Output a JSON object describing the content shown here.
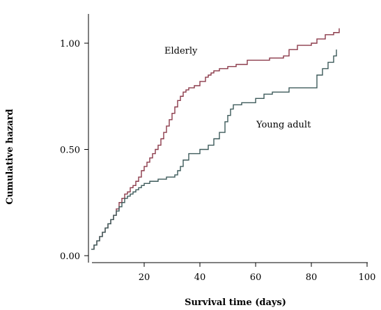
{
  "chart_data": {
    "type": "line",
    "line_style": "step",
    "xlabel": "Survival time (days)",
    "ylabel": "Cumulative hazard",
    "xlim": [
      0,
      100
    ],
    "ylim": [
      0,
      1.1
    ],
    "xticks": [
      20,
      40,
      60,
      80,
      100
    ],
    "yticks": [
      0.0,
      0.5,
      1.0
    ],
    "xtick_labels": [
      "20",
      "40",
      "60",
      "80",
      "100"
    ],
    "ytick_labels": [
      "0.00",
      "0.50",
      "1.00"
    ],
    "grid": false,
    "legend": "none",
    "series": [
      {
        "name": "Elderly",
        "color": "#8b3a4a",
        "x": [
          1,
          2,
          3,
          4,
          5,
          6,
          7,
          8,
          9,
          10,
          11,
          12,
          13,
          14,
          15,
          16,
          17,
          18,
          19,
          20,
          21,
          22,
          23,
          24,
          25,
          26,
          27,
          28,
          29,
          30,
          31,
          32,
          33,
          34,
          35,
          36,
          38,
          40,
          42,
          43,
          44,
          45,
          47,
          50,
          53,
          57,
          65,
          70,
          72,
          75,
          80,
          82,
          85,
          88,
          90
        ],
        "y": [
          0.03,
          0.05,
          0.07,
          0.09,
          0.11,
          0.13,
          0.15,
          0.17,
          0.19,
          0.22,
          0.25,
          0.27,
          0.29,
          0.3,
          0.32,
          0.33,
          0.35,
          0.37,
          0.4,
          0.42,
          0.44,
          0.46,
          0.48,
          0.5,
          0.52,
          0.55,
          0.58,
          0.61,
          0.64,
          0.67,
          0.7,
          0.73,
          0.75,
          0.77,
          0.78,
          0.79,
          0.8,
          0.82,
          0.84,
          0.85,
          0.86,
          0.87,
          0.88,
          0.89,
          0.9,
          0.92,
          0.93,
          0.94,
          0.97,
          0.99,
          1.0,
          1.02,
          1.04,
          1.05,
          1.07
        ]
      },
      {
        "name": "Young adult",
        "color": "#3d5a5a",
        "x": [
          1,
          2,
          3,
          4,
          5,
          6,
          7,
          8,
          9,
          10,
          11,
          12,
          13,
          14,
          15,
          16,
          17,
          18,
          19,
          20,
          22,
          25,
          28,
          31,
          32,
          33,
          34,
          36,
          40,
          43,
          45,
          47,
          49,
          50,
          51,
          52,
          55,
          60,
          63,
          66,
          72,
          82,
          84,
          86,
          88,
          89
        ],
        "y": [
          0.03,
          0.05,
          0.07,
          0.09,
          0.11,
          0.13,
          0.15,
          0.17,
          0.19,
          0.21,
          0.23,
          0.25,
          0.27,
          0.28,
          0.29,
          0.3,
          0.31,
          0.32,
          0.33,
          0.34,
          0.35,
          0.36,
          0.37,
          0.38,
          0.4,
          0.42,
          0.45,
          0.48,
          0.5,
          0.52,
          0.55,
          0.58,
          0.63,
          0.66,
          0.69,
          0.71,
          0.72,
          0.74,
          0.76,
          0.77,
          0.79,
          0.85,
          0.88,
          0.91,
          0.94,
          0.97
        ]
      }
    ],
    "annotations": [
      "Elderly",
      "Young adult"
    ]
  }
}
